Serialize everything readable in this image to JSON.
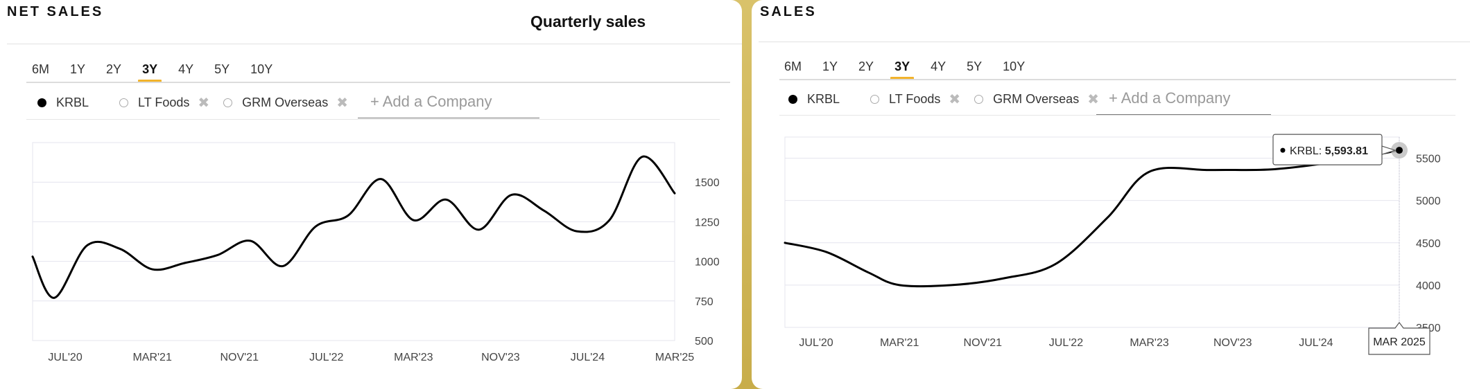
{
  "left_panel": {
    "title": "NET SALES",
    "subtitle": "Quarterly sales",
    "tabs": [
      "6M",
      "1Y",
      "2Y",
      "3Y",
      "4Y",
      "5Y",
      "10Y"
    ],
    "active_tab": "3Y",
    "legend": [
      {
        "name": "KRBL",
        "active": true
      },
      {
        "name": "LT Foods",
        "active": false,
        "removable": true
      },
      {
        "name": "GRM Overseas",
        "active": false,
        "removable": true
      }
    ],
    "add_company_label": "+ Add a Company"
  },
  "right_panel": {
    "title": "SALES",
    "tabs": [
      "6M",
      "1Y",
      "2Y",
      "3Y",
      "4Y",
      "5Y",
      "10Y"
    ],
    "active_tab": "3Y",
    "legend": [
      {
        "name": "KRBL",
        "active": true
      },
      {
        "name": "LT Foods",
        "active": false,
        "removable": true
      },
      {
        "name": "GRM Overseas",
        "active": false,
        "removable": true
      }
    ],
    "add_company_label": "+ Add a Company",
    "tooltip": {
      "series": "KRBL",
      "value": "5,593.81"
    },
    "crosshair_label": "MAR 2025"
  },
  "colors": {
    "line": "#000000",
    "accent": "#f2b32b",
    "grid": "#e4e4ee",
    "background_frame": "#d4bb5a"
  },
  "chart_data": [
    {
      "type": "line",
      "title": "Quarterly sales",
      "series": [
        {
          "name": "KRBL"
        }
      ],
      "x_tick_labels": [
        "JUL'20",
        "MAR'21",
        "NOV'21",
        "JUL'22",
        "MAR'23",
        "NOV'23",
        "JUL'24",
        "MAR'25"
      ],
      "x_start": "2020-04",
      "x_end": "2025-03",
      "ylim": [
        500,
        1750
      ],
      "yticks": [
        500,
        750,
        1000,
        1250,
        1500
      ],
      "points": [
        {
          "x": "2020-04",
          "y": 1030
        },
        {
          "x": "2020-06",
          "y": 770
        },
        {
          "x": "2020-09",
          "y": 1100
        },
        {
          "x": "2020-12",
          "y": 1080
        },
        {
          "x": "2021-03",
          "y": 950
        },
        {
          "x": "2021-06",
          "y": 990
        },
        {
          "x": "2021-09",
          "y": 1040
        },
        {
          "x": "2021-12",
          "y": 1130
        },
        {
          "x": "2022-03",
          "y": 970
        },
        {
          "x": "2022-06",
          "y": 1220
        },
        {
          "x": "2022-09",
          "y": 1290
        },
        {
          "x": "2022-12",
          "y": 1520
        },
        {
          "x": "2023-03",
          "y": 1260
        },
        {
          "x": "2023-06",
          "y": 1390
        },
        {
          "x": "2023-09",
          "y": 1200
        },
        {
          "x": "2023-12",
          "y": 1420
        },
        {
          "x": "2024-03",
          "y": 1320
        },
        {
          "x": "2024-06",
          "y": 1190
        },
        {
          "x": "2024-09",
          "y": 1260
        },
        {
          "x": "2024-12",
          "y": 1660
        },
        {
          "x": "2025-03",
          "y": 1430
        }
      ]
    },
    {
      "type": "line",
      "title": "",
      "series": [
        {
          "name": "KRBL"
        }
      ],
      "x_tick_labels": [
        "JUL'20",
        "MAR'21",
        "NOV'21",
        "JUL'22",
        "MAR'23",
        "NOV'23",
        "JUL'24"
      ],
      "x_start": "2020-04",
      "x_end": "2025-03",
      "ylim": [
        3500,
        5750
      ],
      "yticks": [
        3500,
        4000,
        4500,
        5000,
        5500
      ],
      "points": [
        {
          "x": "2020-04",
          "y": 4500
        },
        {
          "x": "2020-08",
          "y": 4390
        },
        {
          "x": "2020-12",
          "y": 4150
        },
        {
          "x": "2021-03",
          "y": 4000
        },
        {
          "x": "2021-08",
          "y": 4000
        },
        {
          "x": "2022-01",
          "y": 4080
        },
        {
          "x": "2022-06",
          "y": 4250
        },
        {
          "x": "2022-11",
          "y": 4800
        },
        {
          "x": "2023-03",
          "y": 5340
        },
        {
          "x": "2023-09",
          "y": 5360
        },
        {
          "x": "2024-03",
          "y": 5370
        },
        {
          "x": "2024-09",
          "y": 5460
        },
        {
          "x": "2025-03",
          "y": 5593.81
        }
      ]
    }
  ]
}
